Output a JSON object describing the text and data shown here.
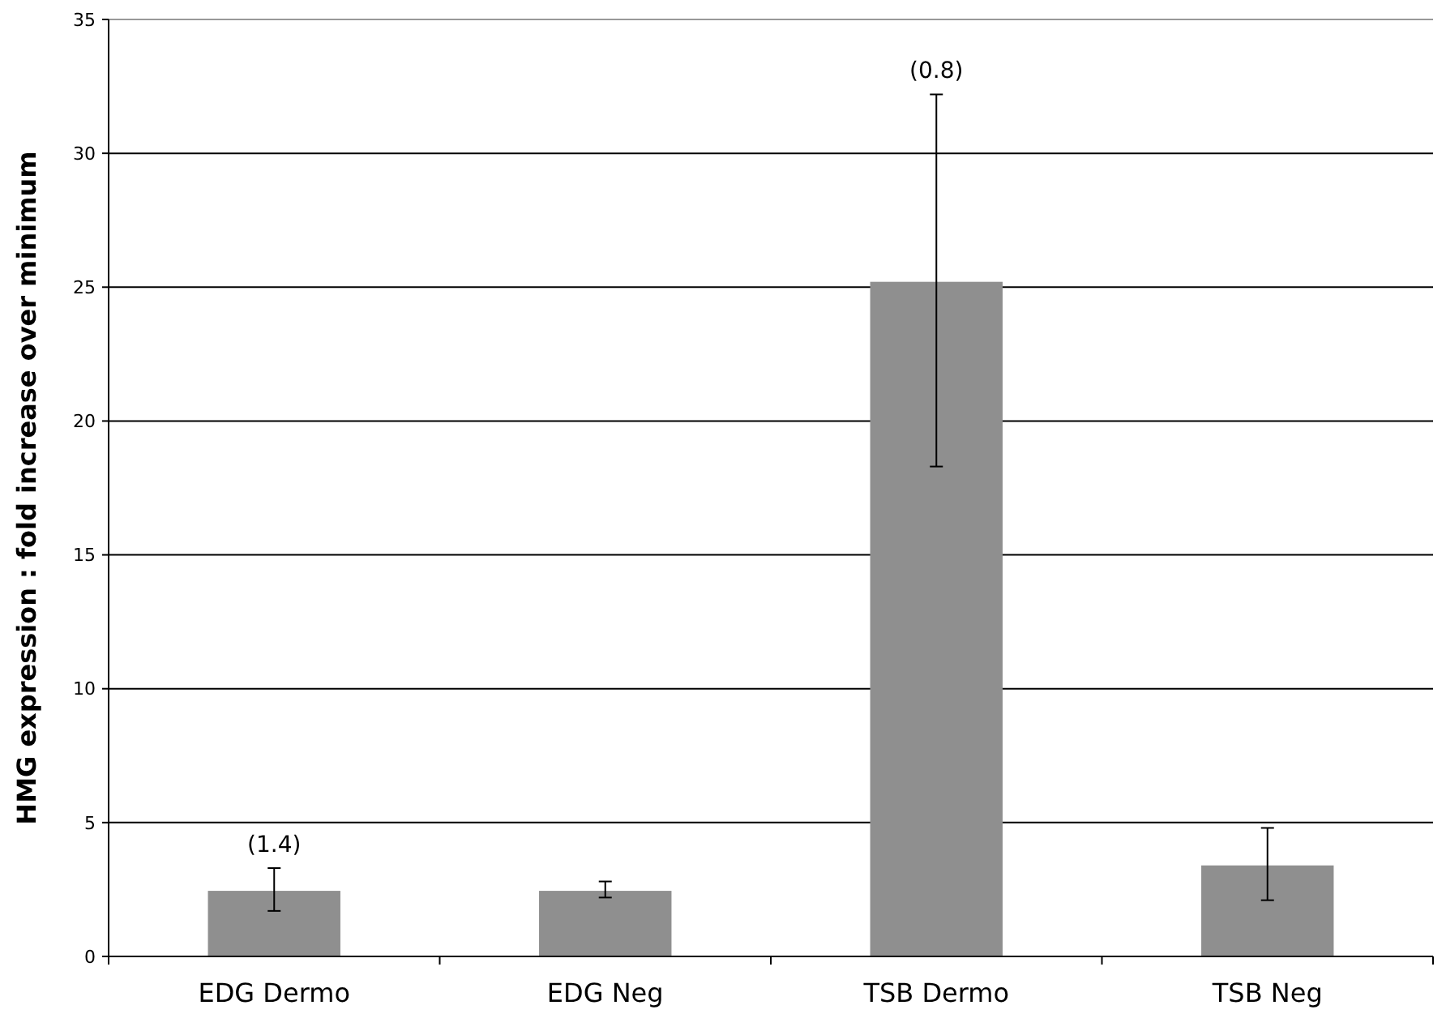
{
  "chart_data": {
    "type": "bar",
    "ylabel": "HMG expression : fold increase over minimum",
    "categories": [
      "EDG Dermo",
      "EDG Neg",
      "TSB Dermo",
      "TSB Neg"
    ],
    "values": [
      2.45,
      2.45,
      25.2,
      3.4
    ],
    "errors": [
      [
        1.7,
        3.3
      ],
      [
        2.2,
        2.8
      ],
      [
        18.3,
        32.2
      ],
      [
        2.1,
        4.8
      ]
    ],
    "color": "#8f8f8f",
    "ylim": [
      0,
      35
    ],
    "yticks": [
      0,
      5,
      10,
      15,
      20,
      25,
      30,
      35
    ],
    "grid": "y",
    "annotations": [
      {
        "text": "(1.4)",
        "x": "EDG Dermo",
        "y": 3.3
      },
      {
        "text": "(0.8)",
        "x": "TSB Dermo",
        "y": 32.2
      }
    ]
  }
}
